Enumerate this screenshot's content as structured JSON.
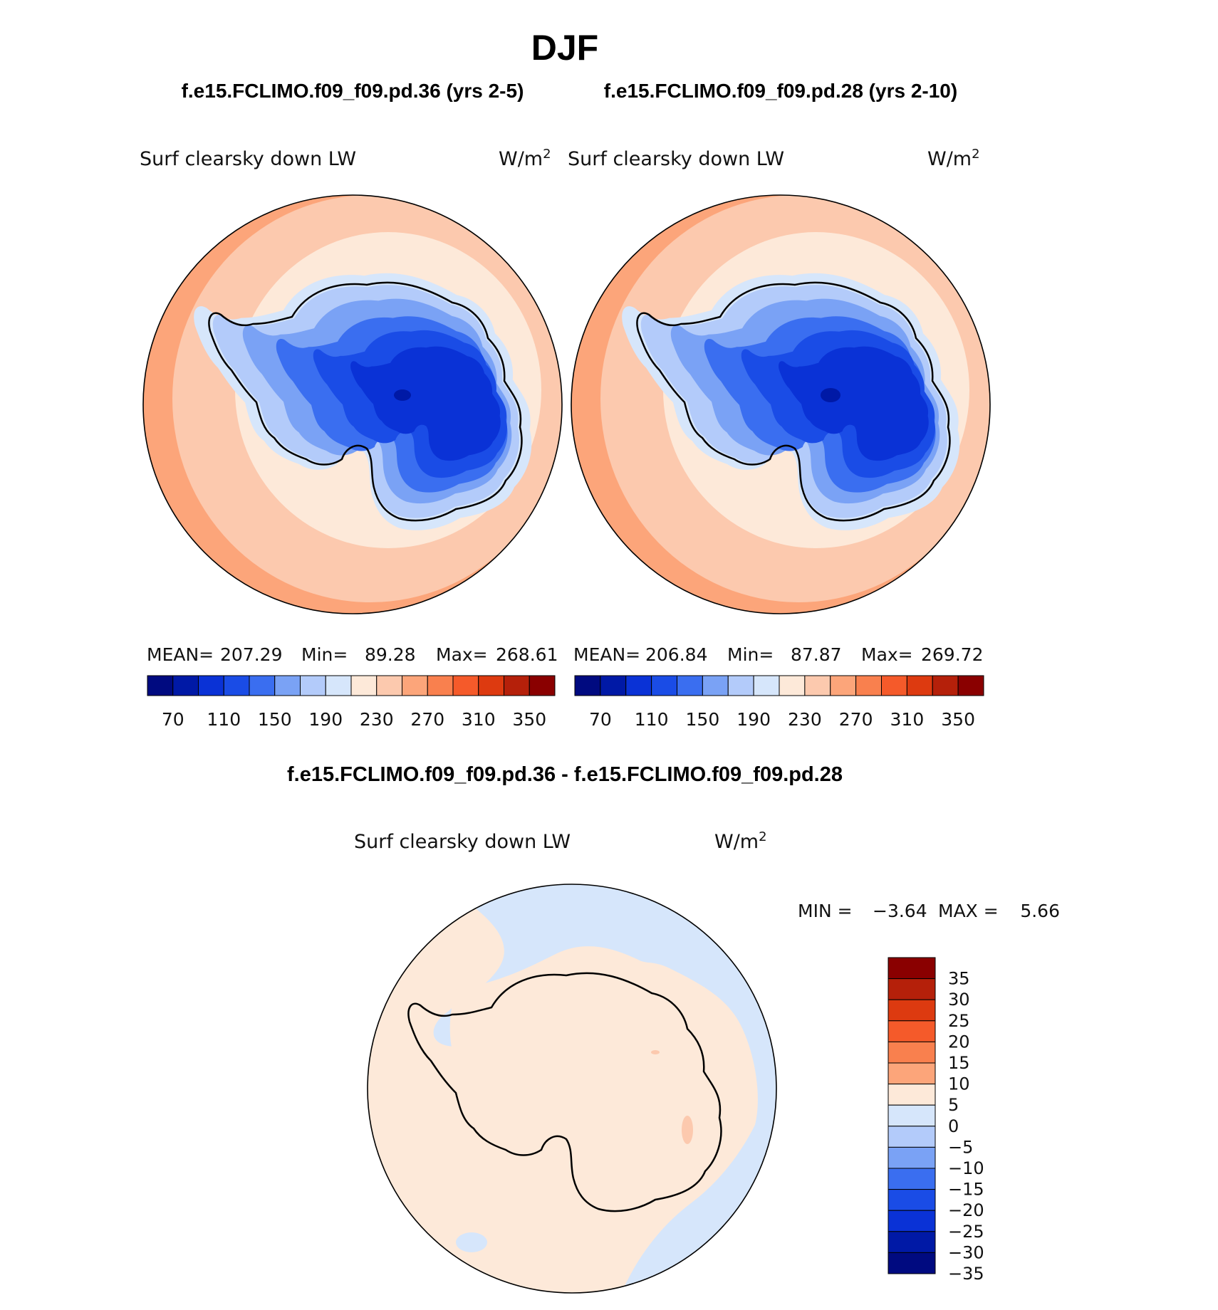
{
  "page_title": "DJF",
  "panels": [
    {
      "case_title": "f.e15.FCLIMO.f09_f09.pd.36 (yrs 2-5)",
      "variable": "Surf clearsky down LW",
      "units": "W/m",
      "units_sup": "2",
      "stats": {
        "mean_label": "MEAN=",
        "mean": "207.29",
        "min_label": "Min=",
        "min": "89.28",
        "max_label": "Max=",
        "max": "268.61"
      }
    },
    {
      "case_title": "f.e15.FCLIMO.f09_f09.pd.28 (yrs 2-10)",
      "variable": "Surf clearsky down LW",
      "units": "W/m",
      "units_sup": "2",
      "stats": {
        "mean_label": "MEAN=",
        "mean": "206.84",
        "min_label": "Min=",
        "min": "87.87",
        "max_label": "Max=",
        "max": "269.72"
      }
    }
  ],
  "main_colorbar": {
    "colors": [
      "#000a80",
      "#0019a6",
      "#0a32d6",
      "#1a4ce6",
      "#3a6ef0",
      "#7aa2f5",
      "#b3cbfa",
      "#d6e6fb",
      "#fde9d9",
      "#fcc9ae",
      "#fca57a",
      "#f9804e",
      "#f55a2a",
      "#dd3a10",
      "#b5200a",
      "#8a0000"
    ],
    "tick_labels": [
      "70",
      "110",
      "150",
      "190",
      "230",
      "270",
      "310",
      "350"
    ]
  },
  "diff": {
    "title": "f.e15.FCLIMO.f09_f09.pd.36 - f.e15.FCLIMO.f09_f09.pd.28",
    "variable": "Surf clearsky down LW",
    "units": "W/m",
    "units_sup": "2",
    "min_label": "MIN =",
    "min": "−3.64",
    "max_label": "MAX =",
    "max": "5.66",
    "colorbar": {
      "colors_top_to_bottom": [
        "#8a0000",
        "#b5200a",
        "#dd3a10",
        "#f55a2a",
        "#f9804e",
        "#fca57a",
        "#fde9d9",
        "#d6e6fb",
        "#b3cbfa",
        "#7aa2f5",
        "#3a6ef0",
        "#1a4ce6",
        "#0a32d6",
        "#0019a6",
        "#000a80"
      ],
      "tick_labels": [
        "35",
        "30",
        "25",
        "20",
        "15",
        "10",
        "5",
        "0",
        "−5",
        "−10",
        "−15",
        "−20",
        "−25",
        "−30",
        "−35"
      ]
    }
  }
}
